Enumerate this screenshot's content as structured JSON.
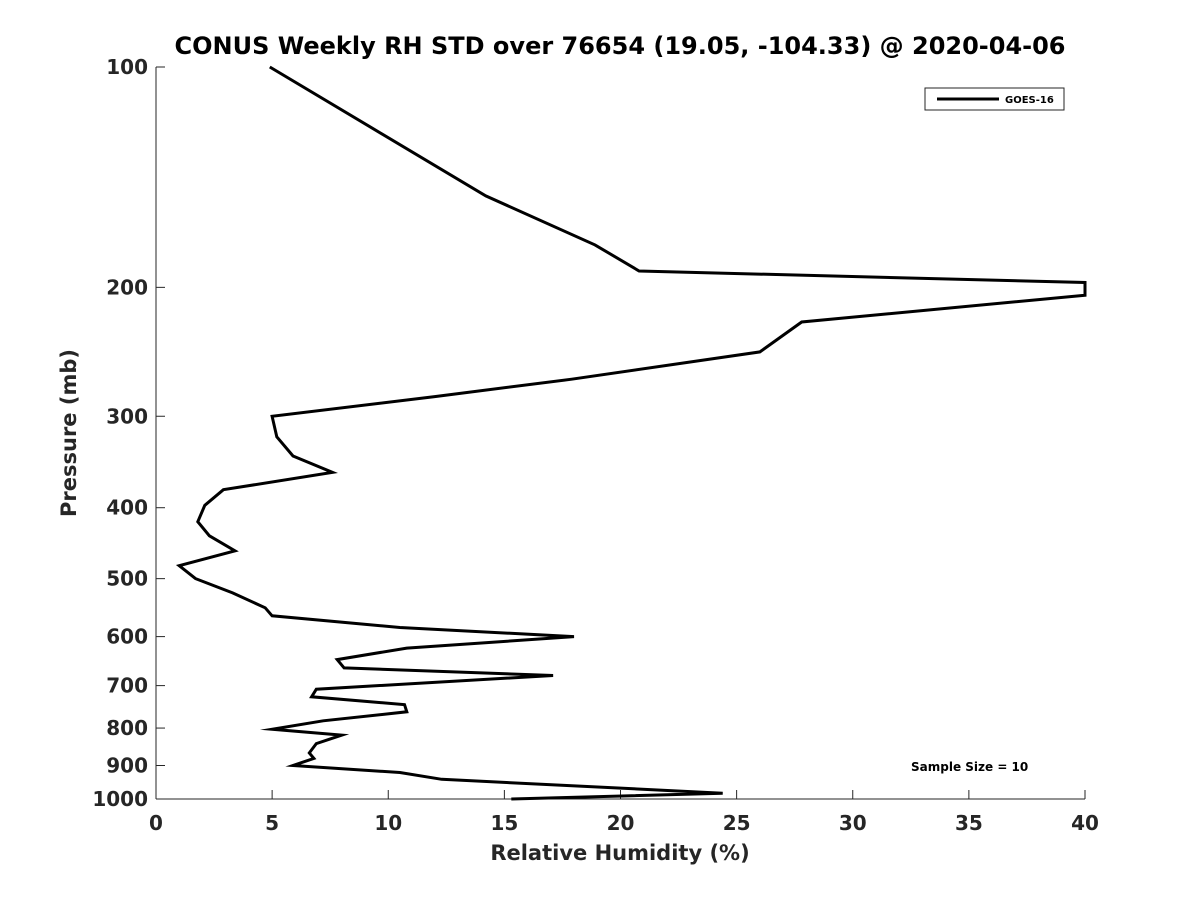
{
  "chart_data": {
    "type": "line",
    "title": "CONUS Weekly RH STD over 76654 (19.05, -104.33) @ 2020-04-06",
    "xlabel": "Relative Humidity (%)",
    "ylabel": "Pressure (mb)",
    "xlim": [
      0,
      40
    ],
    "ylim": [
      100,
      1000
    ],
    "y_scale": "log",
    "y_reversed": true,
    "grid": false,
    "x_ticks": [
      0,
      5,
      10,
      15,
      20,
      25,
      30,
      35,
      40
    ],
    "y_ticks": [
      100,
      200,
      300,
      400,
      500,
      600,
      700,
      800,
      900,
      1000
    ],
    "legend_position": "top-right",
    "series": [
      {
        "name": "GOES-16",
        "color": "#000000",
        "points": [
          [
            4.9,
            100
          ],
          [
            14.2,
            150
          ],
          [
            18.9,
            175
          ],
          [
            20.8,
            190
          ],
          [
            40,
            197
          ],
          [
            40,
            205
          ],
          [
            27.8,
            223
          ],
          [
            26.0,
            245
          ],
          [
            17.9,
            267
          ],
          [
            12.0,
            282
          ],
          [
            5.0,
            300
          ],
          [
            5.2,
            320
          ],
          [
            5.9,
            340
          ],
          [
            7.6,
            358
          ],
          [
            2.9,
            378
          ],
          [
            2.1,
            397
          ],
          [
            1.8,
            418
          ],
          [
            2.3,
            437
          ],
          [
            3.4,
            458
          ],
          [
            1.0,
            480
          ],
          [
            1.7,
            500
          ],
          [
            3.3,
            523
          ],
          [
            4.7,
            548
          ],
          [
            5.0,
            562
          ],
          [
            10.5,
            583
          ],
          [
            18.0,
            600
          ],
          [
            10.8,
            622
          ],
          [
            7.8,
            645
          ],
          [
            8.1,
            662
          ],
          [
            17.1,
            678
          ],
          [
            6.9,
            708
          ],
          [
            6.7,
            725
          ],
          [
            10.7,
            743
          ],
          [
            10.8,
            760
          ],
          [
            7.2,
            782
          ],
          [
            5.0,
            803
          ],
          [
            8.0,
            818
          ],
          [
            6.9,
            840
          ],
          [
            6.6,
            865
          ],
          [
            6.8,
            880
          ],
          [
            5.9,
            900
          ],
          [
            10.5,
            920
          ],
          [
            12.3,
            940
          ],
          [
            24.4,
            982
          ],
          [
            15.3,
            1000
          ]
        ]
      }
    ],
    "annotations": [
      "Sample Size = 10"
    ]
  }
}
